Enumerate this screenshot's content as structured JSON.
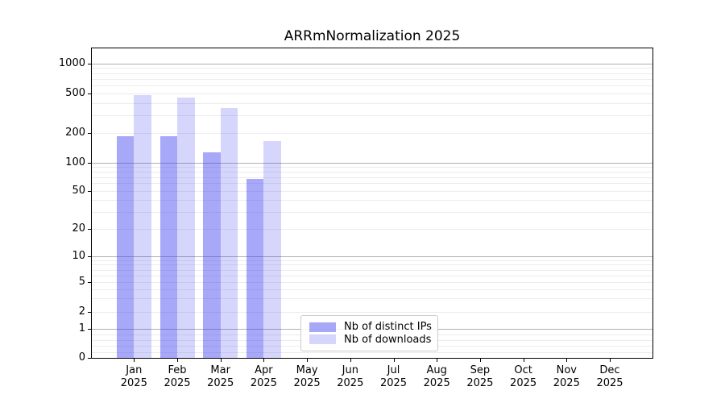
{
  "title": "ARRmNormalization 2025",
  "chart_data": {
    "type": "bar",
    "title": "ARRmNormalization 2025",
    "categories": [
      "Jan",
      "Feb",
      "Mar",
      "Apr",
      "May",
      "Jun",
      "Jul",
      "Aug",
      "Sep",
      "Oct",
      "Nov",
      "Dec"
    ],
    "x_year": "2025",
    "series": [
      {
        "name": "Nb of distinct IPs",
        "color": "rgba(62,62,240,0.45)",
        "values": [
          187,
          186,
          127,
          67,
          0,
          0,
          0,
          0,
          0,
          0,
          0,
          0
        ]
      },
      {
        "name": "Nb of downloads",
        "color": "rgba(62,62,240,0.21)",
        "values": [
          478,
          452,
          360,
          165,
          0,
          0,
          0,
          0,
          0,
          0,
          0,
          0
        ]
      }
    ],
    "xlabel": "",
    "ylabel": "",
    "y_scale": "log-like with linear 0-1 segment",
    "y_ticks": [
      0,
      1,
      2,
      5,
      10,
      20,
      50,
      100,
      200,
      500,
      1000
    ],
    "y_tick_labels": [
      "0",
      "1",
      "2",
      "5",
      "10",
      "20",
      "50",
      "100",
      "200",
      "500",
      "1000"
    ],
    "ylim": [
      0,
      1400
    ],
    "grid": true,
    "legend_position": "lower center",
    "grid_major_color": "#b0b0b0",
    "grid_minor_color": "#ececec",
    "spine_color": "#000000",
    "background_color": "#ffffff"
  }
}
